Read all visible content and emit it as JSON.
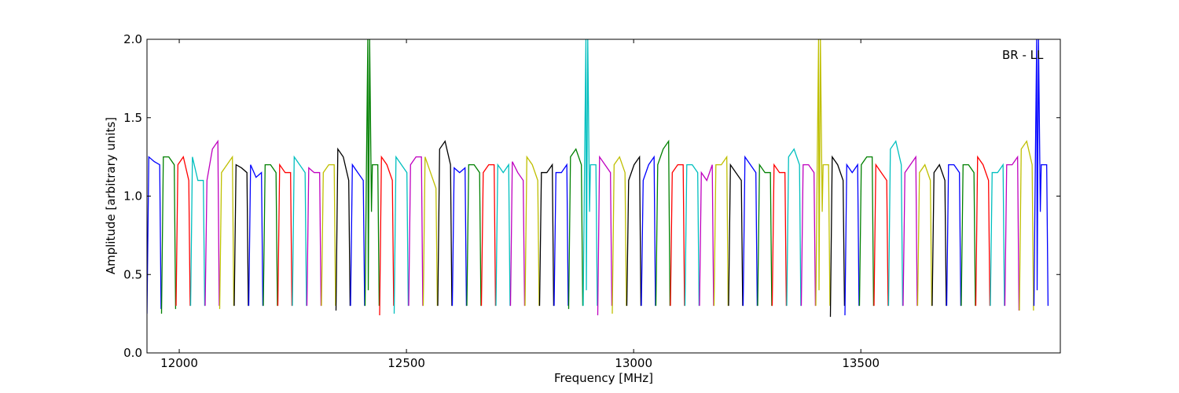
{
  "chart_data": {
    "type": "line",
    "xlabel": "Frequency [MHz]",
    "ylabel": "Amplitude [arbitrary units]",
    "annotation": "BR - LL",
    "xlim": [
      11929,
      13939
    ],
    "ylim": [
      0,
      2
    ],
    "xticks": [
      12000,
      12500,
      13000,
      13500
    ],
    "yticks": [
      {
        "value": 0,
        "label": "0.0"
      },
      0.5,
      {
        "value": 1,
        "label": "1.0"
      },
      1.5,
      {
        "value": 2,
        "label": "2.0"
      }
    ],
    "series": [
      {
        "color": "#0000ff",
        "x": [
          11929,
          11933,
          11945,
          11957,
          11960
        ],
        "values": [
          0.25,
          1.25,
          1.22,
          1.2,
          0.28
        ]
      },
      {
        "color": "#008000",
        "x": [
          11961,
          11965,
          11977,
          11989,
          11992
        ],
        "values": [
          0.25,
          1.25,
          1.25,
          1.2,
          0.28
        ]
      },
      {
        "color": "#ff0000",
        "x": [
          11993,
          11997,
          12009,
          12021,
          12024
        ],
        "values": [
          0.3,
          1.2,
          1.25,
          1.1,
          0.3
        ]
      },
      {
        "color": "#00bfbf",
        "x": [
          12025,
          12029,
          12041,
          12053,
          12056
        ],
        "values": [
          0.3,
          1.25,
          1.1,
          1.1,
          0.3
        ]
      },
      {
        "color": "#bf00bf",
        "x": [
          12057,
          12061,
          12073,
          12085,
          12088
        ],
        "values": [
          0.3,
          1.1,
          1.3,
          1.35,
          0.3
        ]
      },
      {
        "color": "#bfbf00",
        "x": [
          12089,
          12093,
          12105,
          12117,
          12120
        ],
        "values": [
          0.28,
          1.15,
          1.2,
          1.25,
          0.3
        ]
      },
      {
        "color": "#000000",
        "x": [
          12121,
          12125,
          12137,
          12149,
          12152
        ],
        "values": [
          0.3,
          1.2,
          1.18,
          1.15,
          0.3
        ]
      },
      {
        "color": "#0000ff",
        "x": [
          12153,
          12157,
          12169,
          12181,
          12184
        ],
        "values": [
          0.3,
          1.2,
          1.12,
          1.15,
          0.3
        ]
      },
      {
        "color": "#008000",
        "x": [
          12185,
          12189,
          12201,
          12213,
          12216
        ],
        "values": [
          0.3,
          1.2,
          1.2,
          1.15,
          0.3
        ]
      },
      {
        "color": "#ff0000",
        "x": [
          12217,
          12221,
          12233,
          12245,
          12248
        ],
        "values": [
          0.3,
          1.2,
          1.15,
          1.15,
          0.3
        ]
      },
      {
        "color": "#00bfbf",
        "x": [
          12249,
          12253,
          12265,
          12277,
          12280
        ],
        "values": [
          0.3,
          1.25,
          1.2,
          1.15,
          0.3
        ]
      },
      {
        "color": "#bf00bf",
        "x": [
          12281,
          12285,
          12297,
          12309,
          12312
        ],
        "values": [
          0.3,
          1.18,
          1.15,
          1.15,
          0.3
        ]
      },
      {
        "color": "#bfbf00",
        "x": [
          12313,
          12317,
          12329,
          12341,
          12344
        ],
        "values": [
          0.3,
          1.15,
          1.2,
          1.2,
          0.3
        ]
      },
      {
        "color": "#000000",
        "x": [
          12345,
          12349,
          12361,
          12373,
          12376
        ],
        "values": [
          0.27,
          1.3,
          1.25,
          1.1,
          0.3
        ]
      },
      {
        "color": "#0000ff",
        "x": [
          12377,
          12381,
          12393,
          12405,
          12408
        ],
        "values": [
          0.3,
          1.2,
          1.15,
          1.1,
          0.3
        ]
      },
      {
        "color": "#008000",
        "x": [
          12409,
          12412,
          12415,
          12416,
          12419,
          12423,
          12425,
          12437,
          12440
        ],
        "values": [
          0.3,
          1.2,
          2.0,
          0.4,
          2.0,
          0.9,
          1.2,
          1.2,
          0.3
        ]
      },
      {
        "color": "#ff0000",
        "x": [
          12441,
          12445,
          12457,
          12469,
          12472
        ],
        "values": [
          0.24,
          1.25,
          1.2,
          1.1,
          0.3
        ]
      },
      {
        "color": "#00bfbf",
        "x": [
          12473,
          12477,
          12489,
          12501,
          12504
        ],
        "values": [
          0.25,
          1.25,
          1.2,
          1.15,
          0.3
        ]
      },
      {
        "color": "#bf00bf",
        "x": [
          12505,
          12509,
          12521,
          12533,
          12536
        ],
        "values": [
          0.3,
          1.2,
          1.25,
          1.25,
          0.3
        ]
      },
      {
        "color": "#bfbf00",
        "x": [
          12537,
          12541,
          12553,
          12565,
          12568
        ],
        "values": [
          0.3,
          1.25,
          1.15,
          1.05,
          0.3
        ]
      },
      {
        "color": "#000000",
        "x": [
          12569,
          12573,
          12585,
          12597,
          12600
        ],
        "values": [
          0.3,
          1.3,
          1.35,
          1.2,
          0.3
        ]
      },
      {
        "color": "#0000ff",
        "x": [
          12601,
          12605,
          12617,
          12629,
          12632
        ],
        "values": [
          0.3,
          1.18,
          1.15,
          1.18,
          0.3
        ]
      },
      {
        "color": "#008000",
        "x": [
          12633,
          12637,
          12649,
          12661,
          12664
        ],
        "values": [
          0.3,
          1.2,
          1.2,
          1.15,
          0.3
        ]
      },
      {
        "color": "#ff0000",
        "x": [
          12665,
          12669,
          12681,
          12693,
          12696
        ],
        "values": [
          0.3,
          1.15,
          1.2,
          1.2,
          0.3
        ]
      },
      {
        "color": "#00bfbf",
        "x": [
          12697,
          12701,
          12713,
          12725,
          12728
        ],
        "values": [
          0.3,
          1.2,
          1.15,
          1.2,
          0.3
        ]
      },
      {
        "color": "#bf00bf",
        "x": [
          12729,
          12733,
          12745,
          12757,
          12760
        ],
        "values": [
          0.3,
          1.22,
          1.15,
          1.1,
          0.3
        ]
      },
      {
        "color": "#bfbf00",
        "x": [
          12761,
          12765,
          12777,
          12789,
          12792
        ],
        "values": [
          0.3,
          1.25,
          1.2,
          1.1,
          0.3
        ]
      },
      {
        "color": "#000000",
        "x": [
          12793,
          12797,
          12809,
          12821,
          12824
        ],
        "values": [
          0.3,
          1.15,
          1.15,
          1.2,
          0.3
        ]
      },
      {
        "color": "#0000ff",
        "x": [
          12825,
          12829,
          12841,
          12853,
          12856
        ],
        "values": [
          0.3,
          1.15,
          1.15,
          1.2,
          0.3
        ]
      },
      {
        "color": "#008000",
        "x": [
          12857,
          12861,
          12873,
          12885,
          12888
        ],
        "values": [
          0.28,
          1.25,
          1.3,
          1.2,
          0.3
        ]
      },
      {
        "color": "#00bfbf",
        "x": [
          12889,
          12892,
          12895,
          12896,
          12899,
          12903,
          12905,
          12917,
          12920
        ],
        "values": [
          0.3,
          1.2,
          2.0,
          0.4,
          2.0,
          0.9,
          1.2,
          1.2,
          0.3
        ]
      },
      {
        "color": "#bf00bf",
        "x": [
          12921,
          12925,
          12937,
          12949,
          12952
        ],
        "values": [
          0.24,
          1.25,
          1.2,
          1.15,
          0.3
        ]
      },
      {
        "color": "#bfbf00",
        "x": [
          12953,
          12957,
          12969,
          12981,
          12984
        ],
        "values": [
          0.25,
          1.2,
          1.25,
          1.15,
          0.3
        ]
      },
      {
        "color": "#000000",
        "x": [
          12985,
          12989,
          13001,
          13013,
          13016
        ],
        "values": [
          0.3,
          1.1,
          1.2,
          1.25,
          0.3
        ]
      },
      {
        "color": "#0000ff",
        "x": [
          13017,
          13021,
          13033,
          13045,
          13048
        ],
        "values": [
          0.3,
          1.1,
          1.2,
          1.25,
          0.3
        ]
      },
      {
        "color": "#008000",
        "x": [
          13049,
          13053,
          13065,
          13077,
          13080
        ],
        "values": [
          0.3,
          1.2,
          1.3,
          1.35,
          0.3
        ]
      },
      {
        "color": "#ff0000",
        "x": [
          13081,
          13085,
          13097,
          13109,
          13112
        ],
        "values": [
          0.3,
          1.15,
          1.2,
          1.2,
          0.3
        ]
      },
      {
        "color": "#00bfbf",
        "x": [
          13113,
          13117,
          13129,
          13141,
          13144
        ],
        "values": [
          0.3,
          1.2,
          1.2,
          1.15,
          0.3
        ]
      },
      {
        "color": "#bf00bf",
        "x": [
          13145,
          13149,
          13161,
          13173,
          13176
        ],
        "values": [
          0.3,
          1.15,
          1.1,
          1.2,
          0.3
        ]
      },
      {
        "color": "#bfbf00",
        "x": [
          13177,
          13181,
          13193,
          13205,
          13208
        ],
        "values": [
          0.3,
          1.2,
          1.2,
          1.25,
          0.3
        ]
      },
      {
        "color": "#000000",
        "x": [
          13209,
          13213,
          13225,
          13237,
          13240
        ],
        "values": [
          0.3,
          1.2,
          1.15,
          1.1,
          0.3
        ]
      },
      {
        "color": "#0000ff",
        "x": [
          13241,
          13245,
          13257,
          13269,
          13272
        ],
        "values": [
          0.3,
          1.25,
          1.2,
          1.15,
          0.3
        ]
      },
      {
        "color": "#008000",
        "x": [
          13273,
          13277,
          13289,
          13301,
          13304
        ],
        "values": [
          0.3,
          1.2,
          1.15,
          1.15,
          0.3
        ]
      },
      {
        "color": "#ff0000",
        "x": [
          13305,
          13309,
          13321,
          13333,
          13336
        ],
        "values": [
          0.3,
          1.2,
          1.15,
          1.15,
          0.3
        ]
      },
      {
        "color": "#00bfbf",
        "x": [
          13337,
          13341,
          13353,
          13365,
          13368
        ],
        "values": [
          0.3,
          1.25,
          1.3,
          1.2,
          0.3
        ]
      },
      {
        "color": "#bf00bf",
        "x": [
          13369,
          13373,
          13385,
          13397,
          13400
        ],
        "values": [
          0.3,
          1.2,
          1.2,
          1.15,
          0.3
        ]
      },
      {
        "color": "#bfbf00",
        "x": [
          13401,
          13404,
          13407,
          13408,
          13411,
          13415,
          13417,
          13429,
          13432
        ],
        "values": [
          0.3,
          1.2,
          2.0,
          0.4,
          2.0,
          0.9,
          1.2,
          1.2,
          0.3
        ]
      },
      {
        "color": "#000000",
        "x": [
          13433,
          13437,
          13449,
          13461,
          13464
        ],
        "values": [
          0.23,
          1.25,
          1.2,
          1.1,
          0.3
        ]
      },
      {
        "color": "#0000ff",
        "x": [
          13465,
          13469,
          13481,
          13493,
          13496
        ],
        "values": [
          0.24,
          1.2,
          1.15,
          1.2,
          0.3
        ]
      },
      {
        "color": "#008000",
        "x": [
          13497,
          13501,
          13513,
          13525,
          13528
        ],
        "values": [
          0.3,
          1.2,
          1.25,
          1.25,
          0.3
        ]
      },
      {
        "color": "#ff0000",
        "x": [
          13529,
          13533,
          13545,
          13557,
          13560
        ],
        "values": [
          0.3,
          1.2,
          1.15,
          1.1,
          0.3
        ]
      },
      {
        "color": "#00bfbf",
        "x": [
          13561,
          13565,
          13577,
          13589,
          13592
        ],
        "values": [
          0.3,
          1.3,
          1.35,
          1.2,
          0.3
        ]
      },
      {
        "color": "#bf00bf",
        "x": [
          13593,
          13597,
          13609,
          13621,
          13624
        ],
        "values": [
          0.3,
          1.15,
          1.2,
          1.25,
          0.3
        ]
      },
      {
        "color": "#bfbf00",
        "x": [
          13625,
          13629,
          13641,
          13653,
          13656
        ],
        "values": [
          0.3,
          1.15,
          1.2,
          1.1,
          0.3
        ]
      },
      {
        "color": "#000000",
        "x": [
          13657,
          13661,
          13673,
          13685,
          13688
        ],
        "values": [
          0.3,
          1.15,
          1.2,
          1.1,
          0.3
        ]
      },
      {
        "color": "#0000ff",
        "x": [
          13689,
          13693,
          13705,
          13717,
          13720
        ],
        "values": [
          0.3,
          1.2,
          1.2,
          1.15,
          0.3
        ]
      },
      {
        "color": "#008000",
        "x": [
          13721,
          13725,
          13737,
          13749,
          13752
        ],
        "values": [
          0.3,
          1.2,
          1.2,
          1.15,
          0.3
        ]
      },
      {
        "color": "#ff0000",
        "x": [
          13753,
          13757,
          13769,
          13781,
          13784
        ],
        "values": [
          0.3,
          1.25,
          1.2,
          1.1,
          0.3
        ]
      },
      {
        "color": "#00bfbf",
        "x": [
          13785,
          13789,
          13801,
          13813,
          13816
        ],
        "values": [
          0.3,
          1.15,
          1.15,
          1.2,
          0.3
        ]
      },
      {
        "color": "#bf00bf",
        "x": [
          13817,
          13821,
          13833,
          13845,
          13848
        ],
        "values": [
          0.3,
          1.2,
          1.2,
          1.25,
          0.27
        ]
      },
      {
        "color": "#bfbf00",
        "x": [
          13849,
          13853,
          13865,
          13877,
          13880
        ],
        "values": [
          0.27,
          1.3,
          1.35,
          1.2,
          0.27
        ]
      },
      {
        "color": "#0000ff",
        "x": [
          13881,
          13884,
          13887,
          13888,
          13891,
          13895,
          13897,
          13909,
          13912
        ],
        "values": [
          0.3,
          1.2,
          2.0,
          0.4,
          2.0,
          0.9,
          1.2,
          1.2,
          0.3
        ]
      }
    ]
  }
}
